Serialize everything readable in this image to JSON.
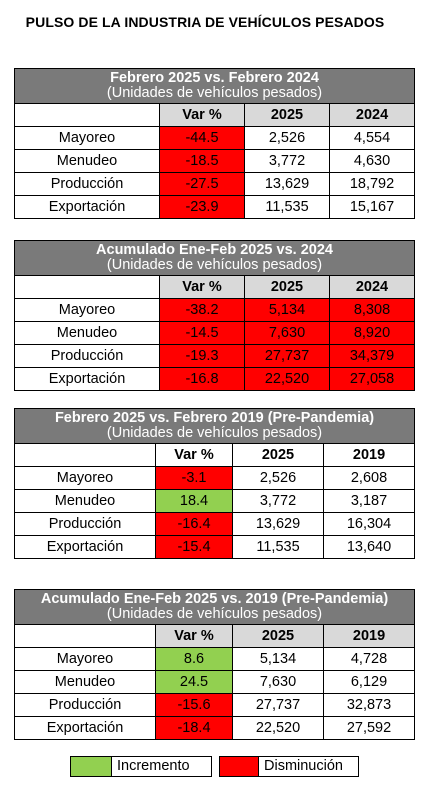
{
  "title": "PULSO DE LA INDUSTRIA DE VEHÍCULOS PESADOS",
  "colors": {
    "decrease": "#ff0000",
    "increase": "#92d050",
    "header": "#7a7a7a",
    "colhead": "#d9d9d9"
  },
  "sections": [
    {
      "title": "Febrero 2025 vs. Febrero 2024",
      "subtitle": "(Unidades de vehículos pesados)",
      "col_var": "Var %",
      "col_a": "2025",
      "col_b": "2024",
      "rows": [
        {
          "label": "Mayoreo",
          "var": "-44.5",
          "a": "2,526",
          "b": "4,554"
        },
        {
          "label": "Menudeo",
          "var": "-18.5",
          "a": "3,772",
          "b": "4,630"
        },
        {
          "label": "Producción",
          "var": "-27.5",
          "a": "13,629",
          "b": "18,792"
        },
        {
          "label": "Exportación",
          "var": "-23.9",
          "a": "11,535",
          "b": "15,167"
        }
      ]
    },
    {
      "title": "Acumulado Ene-Feb 2025 vs. 2024",
      "subtitle": "(Unidades de vehículos pesados)",
      "col_var": "Var %",
      "col_a": "2025",
      "col_b": "2024",
      "rows": [
        {
          "label": "Mayoreo",
          "var": "-38.2",
          "a": "5,134",
          "b": "8,308"
        },
        {
          "label": "Menudeo",
          "var": "-14.5",
          "a": "7,630",
          "b": "8,920"
        },
        {
          "label": "Producción",
          "var": "-19.3",
          "a": "27,737",
          "b": "34,379"
        },
        {
          "label": "Exportación",
          "var": "-16.8",
          "a": "22,520",
          "b": "27,058"
        }
      ]
    },
    {
      "title": "Febrero 2025 vs. Febrero 2019 (Pre-Pandemia)",
      "subtitle": "(Unidades de vehículos pesados)",
      "col_var": "Var %",
      "col_a": "2025",
      "col_b": "2019",
      "rows": [
        {
          "label": "Mayoreo",
          "var": "-3.1",
          "a": "2,526",
          "b": "2,608"
        },
        {
          "label": "Menudeo",
          "var": "18.4",
          "a": "3,772",
          "b": "3,187"
        },
        {
          "label": "Producción",
          "var": "-16.4",
          "a": "13,629",
          "b": "16,304"
        },
        {
          "label": "Exportación",
          "var": "-15.4",
          "a": "11,535",
          "b": "13,640"
        }
      ]
    },
    {
      "title": "Acumulado Ene-Feb 2025 vs. 2019 (Pre-Pandemia)",
      "subtitle": "(Unidades de vehículos pesados)",
      "col_var": "Var %",
      "col_a": "2025",
      "col_b": "2019",
      "rows": [
        {
          "label": "Mayoreo",
          "var": "8.6",
          "a": "5,134",
          "b": "4,728"
        },
        {
          "label": "Menudeo",
          "var": "24.5",
          "a": "7,630",
          "b": "6,129"
        },
        {
          "label": "Producción",
          "var": "-15.6",
          "a": "27,737",
          "b": "32,873"
        },
        {
          "label": "Exportación",
          "var": "-18.4",
          "a": "22,520",
          "b": "27,592"
        }
      ]
    }
  ],
  "legend": {
    "increase": "Incremento",
    "decrease": "Disminución"
  }
}
